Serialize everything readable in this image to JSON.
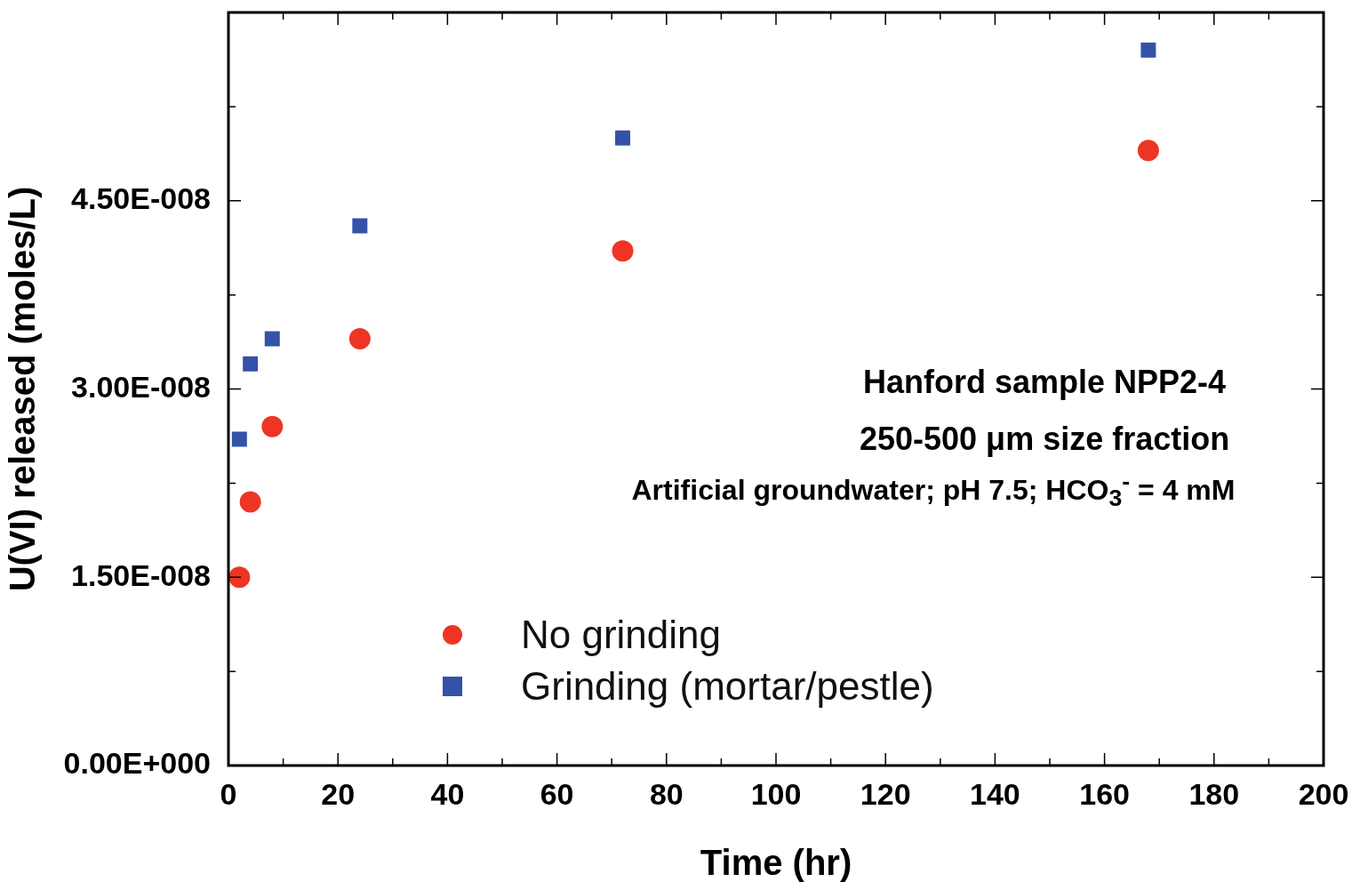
{
  "chart_data": {
    "type": "scatter",
    "xlabel": "Time (hr)",
    "ylabel": "U(VI) released (moles/L)",
    "x": [
      2,
      4,
      8,
      24,
      72,
      168
    ],
    "series": [
      {
        "name": "No grinding",
        "color": "#ee3524",
        "marker": "circle",
        "values": [
          1.5e-08,
          2.1e-08,
          2.7e-08,
          3.4e-08,
          4.1e-08,
          4.9e-08
        ]
      },
      {
        "name": "Grinding (mortar/pestle)",
        "color": "#3352a8",
        "marker": "square",
        "values": [
          2.6e-08,
          3.2e-08,
          3.4e-08,
          4.3e-08,
          5e-08,
          5.7e-08
        ]
      }
    ],
    "xlim": [
      0,
      200
    ],
    "xticks": [
      0,
      {
        "value": 10,
        "label": null
      },
      20,
      {
        "value": 30,
        "label": null
      },
      40,
      {
        "value": 50,
        "label": null
      },
      60,
      {
        "value": 70,
        "label": null
      },
      80,
      {
        "value": 90,
        "label": null
      },
      100,
      {
        "value": 110,
        "label": null
      },
      120,
      {
        "value": 130,
        "label": null
      },
      140,
      {
        "value": 150,
        "label": null
      },
      160,
      {
        "value": 170,
        "label": null
      },
      180,
      {
        "value": 190,
        "label": null
      },
      200
    ],
    "ylim": [
      0,
      6e-08
    ],
    "yticks": [
      {
        "value": 0,
        "label": "0.00E+000"
      },
      {
        "value": 7.5e-09,
        "label": null
      },
      {
        "value": 1.5e-08,
        "label": "1.50E-008"
      },
      {
        "value": 2.25e-08,
        "label": null
      },
      {
        "value": 3e-08,
        "label": "3.00E-008"
      },
      {
        "value": 3.75e-08,
        "label": null
      },
      {
        "value": 4.5e-08,
        "label": "4.50E-008"
      },
      {
        "value": 5.25e-08,
        "label": null
      }
    ],
    "annotations": [
      "Hanford sample NPP2-4",
      "250-500 μm size fraction",
      "Artificial groundwater; pH 7.5; HCO$_{3}$$^{-}$ = 4 mM"
    ],
    "grid": false,
    "legend": "bottom"
  }
}
